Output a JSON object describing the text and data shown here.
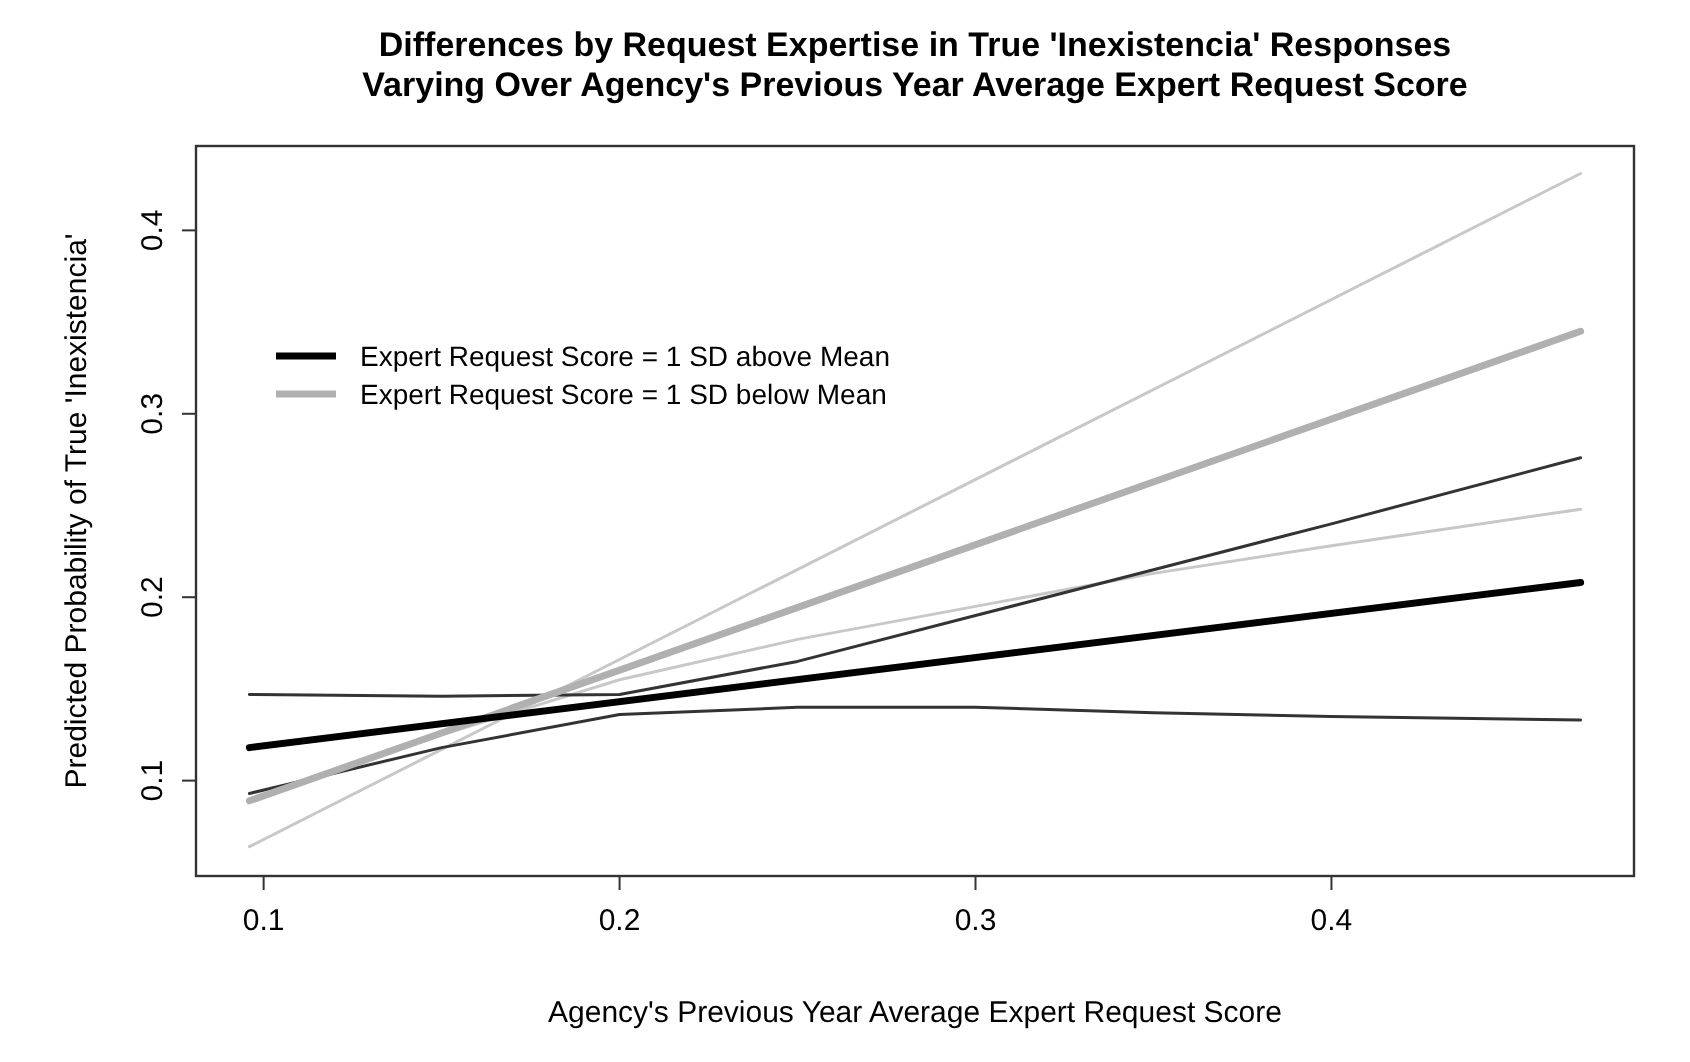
{
  "chart_data": {
    "type": "line",
    "title": "Differences by Request Expertise in True 'Inexistencia' Responses\nVarying Over Agency's Previous Year Average Expert Request Score",
    "xlabel": "Agency's Previous Year Average Expert Request Score",
    "ylabel": "Predicted Probability of True 'Inexistencia'",
    "xlim": [
      0.081,
      0.485
    ],
    "ylim": [
      0.048,
      0.446
    ],
    "xticks": [
      0.1,
      0.2,
      0.3,
      0.4
    ],
    "yticks": [
      0.1,
      0.2,
      0.3,
      0.4
    ],
    "grid": false,
    "legend": "top left",
    "marker": "none",
    "line_style": "solid",
    "series": [
      {
        "color": "#c8c8c8",
        "x": [
          0.096,
          0.47
        ],
        "values": [
          0.064,
          0.431
        ]
      },
      {
        "color": "#c8c8c8",
        "x": [
          0.096,
          0.15,
          0.2,
          0.25,
          0.3,
          0.35,
          0.4,
          0.47
        ],
        "values": [
          0.089,
          0.125,
          0.155,
          0.177,
          0.195,
          0.213,
          0.228,
          0.248
        ]
      },
      {
        "color": "#333333",
        "x": [
          0.096,
          0.15,
          0.2,
          0.25,
          0.3,
          0.35,
          0.4,
          0.47
        ],
        "values": [
          0.147,
          0.146,
          0.147,
          0.165,
          0.19,
          0.215,
          0.24,
          0.276
        ]
      },
      {
        "color": "#333333",
        "x": [
          0.096,
          0.15,
          0.2,
          0.25,
          0.3,
          0.35,
          0.4,
          0.47
        ],
        "values": [
          0.093,
          0.118,
          0.136,
          0.14,
          0.14,
          0.137,
          0.135,
          0.133
        ]
      },
      {
        "name": "Expert Request Score = 1 SD below Mean",
        "color": "#b0b0b0",
        "x": [
          0.096,
          0.47
        ],
        "values": [
          0.089,
          0.345
        ]
      },
      {
        "name": "Expert Request Score = 1 SD above Mean",
        "color": "#000000",
        "x": [
          0.096,
          0.47
        ],
        "values": [
          0.118,
          0.208
        ]
      }
    ]
  }
}
